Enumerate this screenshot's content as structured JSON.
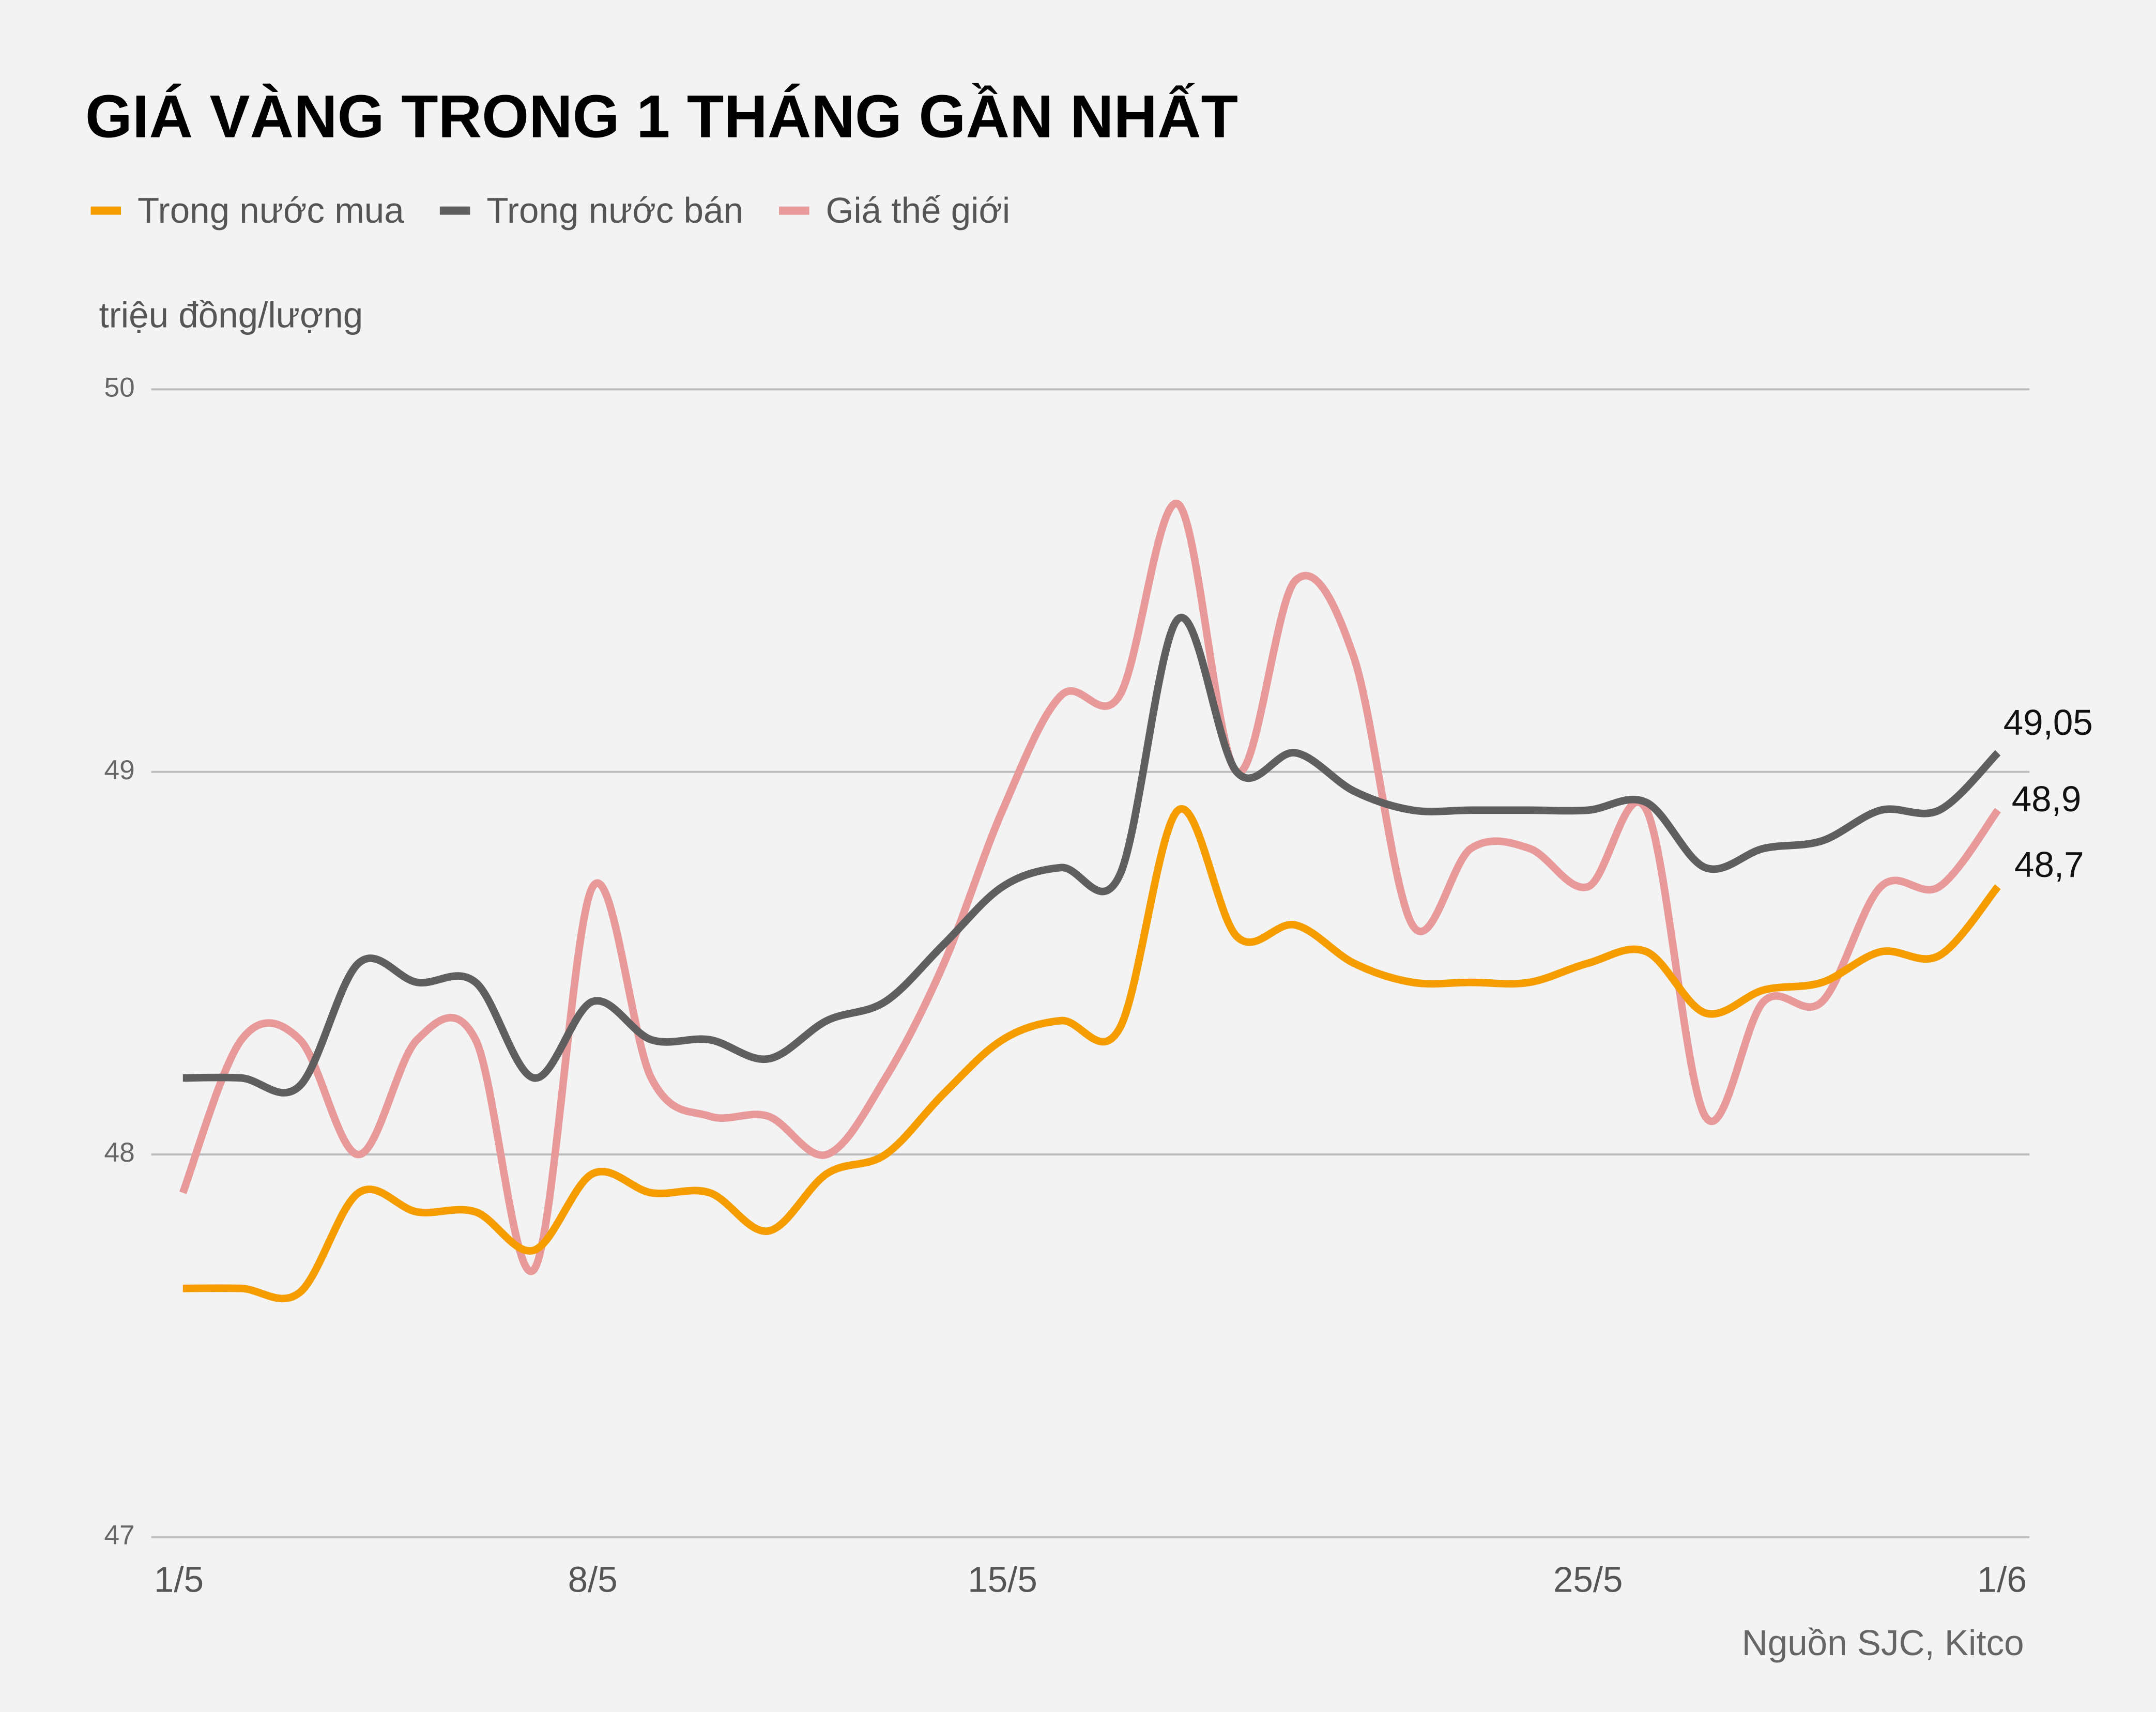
{
  "chart_data": {
    "type": "line",
    "title": "GIÁ VÀNG TRONG 1 THÁNG GẦN NHẤT",
    "y_label": "triệu đồng/lượng",
    "source": "Nguồn SJC, Kitco",
    "categories": [
      "1/5",
      null,
      null,
      null,
      null,
      null,
      null,
      "8/5",
      null,
      null,
      null,
      null,
      null,
      null,
      "15/5",
      null,
      null,
      null,
      null,
      null,
      null,
      null,
      null,
      null,
      "25/5",
      null,
      null,
      null,
      null,
      null,
      null,
      "1/6"
    ],
    "series": [
      {
        "name": "Trong nước mua",
        "color": "#f59c00",
        "values": [
          47.65,
          47.65,
          47.64,
          47.9,
          47.85,
          47.85,
          47.75,
          47.95,
          47.9,
          47.9,
          47.8,
          47.95,
          48.0,
          48.16,
          48.3,
          48.35,
          48.33,
          48.9,
          48.57,
          48.6,
          48.5,
          48.45,
          48.45,
          48.45,
          48.5,
          48.53,
          48.37,
          48.43,
          48.45,
          48.53,
          48.52,
          48.7
        ],
        "value_labels": [
          null,
          null,
          null,
          null,
          null,
          null,
          null,
          null,
          null,
          null,
          null,
          null,
          null,
          null,
          null,
          null,
          null,
          null,
          null,
          null,
          null,
          null,
          null,
          null,
          null,
          null,
          null,
          null,
          null,
          null,
          null,
          "48,7"
        ]
      },
      {
        "name": "Trong nước bán",
        "color": "#5f5f5f",
        "values": [
          48.2,
          48.2,
          48.18,
          48.5,
          48.45,
          48.45,
          48.2,
          48.4,
          48.3,
          48.3,
          48.25,
          48.35,
          48.4,
          48.55,
          48.7,
          48.75,
          48.73,
          49.4,
          49.0,
          49.05,
          48.95,
          48.9,
          48.9,
          48.9,
          48.9,
          48.92,
          48.75,
          48.8,
          48.82,
          48.9,
          48.9,
          49.05
        ],
        "value_labels": [
          null,
          null,
          null,
          null,
          null,
          null,
          null,
          null,
          null,
          null,
          null,
          null,
          null,
          null,
          null,
          null,
          null,
          null,
          null,
          null,
          null,
          null,
          null,
          null,
          null,
          null,
          null,
          null,
          null,
          null,
          null,
          "49,05"
        ]
      },
      {
        "name": "Giá thế giới",
        "color": "#e8999a",
        "values": [
          47.9,
          48.3,
          48.3,
          48.0,
          48.3,
          48.3,
          47.7,
          48.7,
          48.2,
          48.1,
          48.1,
          48.0,
          48.2,
          48.5,
          48.9,
          49.2,
          49.2,
          49.7,
          49.0,
          49.5,
          49.3,
          48.6,
          48.8,
          48.8,
          48.7,
          48.9,
          48.1,
          48.4,
          48.4,
          48.7,
          48.7,
          48.9
        ],
        "value_labels": [
          null,
          null,
          null,
          null,
          null,
          null,
          null,
          null,
          null,
          null,
          null,
          null,
          null,
          null,
          null,
          null,
          null,
          null,
          null,
          null,
          null,
          null,
          null,
          null,
          null,
          null,
          null,
          null,
          null,
          null,
          null,
          "48,9"
        ]
      }
    ],
    "ylim": [
      47,
      50
    ],
    "yticks": [
      47,
      48,
      49,
      50
    ],
    "grid": true
  }
}
